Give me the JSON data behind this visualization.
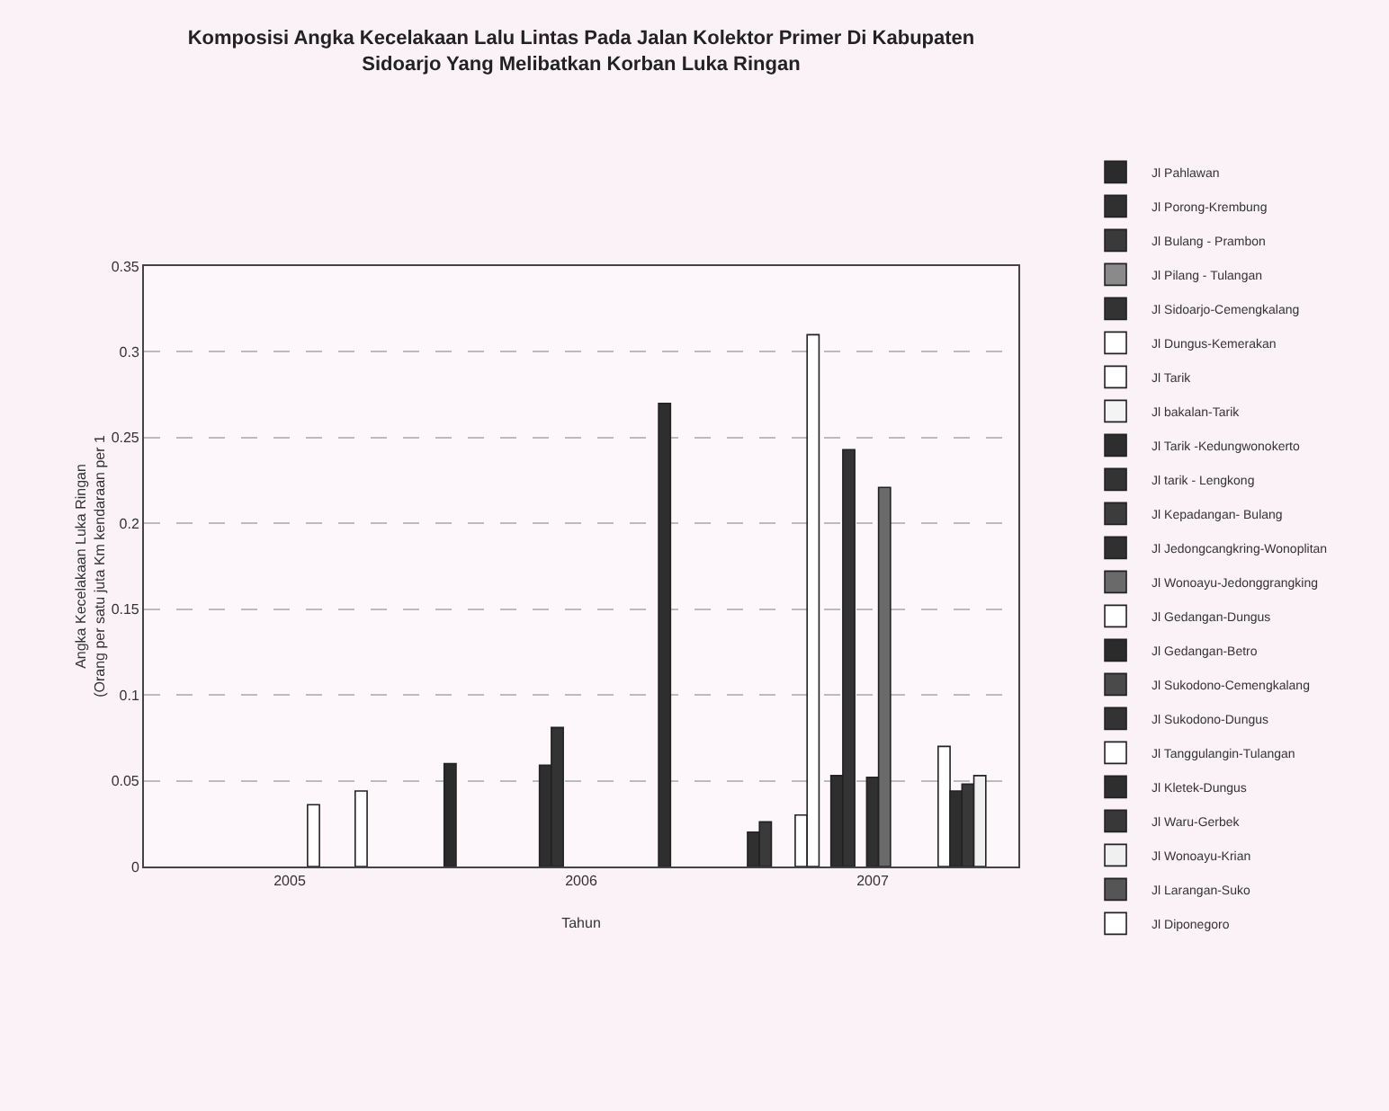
{
  "chart_data": {
    "type": "bar",
    "title": "Komposisi Angka Kecelakaan Lalu Lintas Pada Jalan Kolektor Primer Di Kabupaten\nSidoarjo Yang Melibatkan Korban Luka Ringan",
    "xlabel": "Tahun",
    "ylabel": "Angka Kecelakaan Luka Ringan\n(Orang per satu juta Km kendaraan per 1",
    "categories": [
      "2005",
      "2006",
      "2007"
    ],
    "ylim": [
      0,
      0.35
    ],
    "yticks": [
      0,
      0.05,
      0.1,
      0.15,
      0.2,
      0.25,
      0.3,
      0.35
    ],
    "grid": "y",
    "legend": "right",
    "series": [
      {
        "name": "Jl Pahlawan",
        "color": "#2b2b2b",
        "values": [
          null,
          0.06,
          null
        ]
      },
      {
        "name": "Jl Porong-Krembung",
        "color": "#303030",
        "values": [
          null,
          null,
          0.02
        ]
      },
      {
        "name": "Jl Bulang - Prambon",
        "color": "#3a3a3a",
        "values": [
          null,
          null,
          0.026
        ]
      },
      {
        "name": "Jl Pilang - Tulangan",
        "color": "#8a8a8a",
        "values": [
          null,
          null,
          null
        ]
      },
      {
        "name": "Jl Sidoarjo-Cemengkalang",
        "color": "#333333",
        "values": [
          null,
          null,
          null
        ]
      },
      {
        "name": "Jl Dungus-Kemerakan",
        "color": "#ffffff",
        "values": [
          null,
          null,
          0.03
        ]
      },
      {
        "name": "Jl Tarik",
        "color": "#ffffff",
        "values": [
          null,
          null,
          0.31
        ]
      },
      {
        "name": "Jl bakalan-Tarik",
        "color": "#f4f4f4",
        "values": [
          null,
          null,
          null
        ]
      },
      {
        "name": "Jl Tarik -Kedungwonokerto",
        "color": "#2e2e2e",
        "values": [
          null,
          0.059,
          0.053
        ]
      },
      {
        "name": "Jl tarik - Lengkong",
        "color": "#333333",
        "values": [
          null,
          0.081,
          0.243
        ]
      },
      {
        "name": "Jl Kepadangan- Bulang",
        "color": "#3c3c3c",
        "values": [
          null,
          null,
          null
        ]
      },
      {
        "name": "Jl Jedongcangkring-Wonoplitan",
        "color": "#303030",
        "values": [
          null,
          null,
          0.052
        ]
      },
      {
        "name": "Jl Wonoayu-Jedonggrangking",
        "color": "#6a6a6a",
        "values": [
          null,
          null,
          0.221
        ]
      },
      {
        "name": "Jl Gedangan-Dungus",
        "color": "#ffffff",
        "values": [
          0.036,
          null,
          null
        ]
      },
      {
        "name": "Jl Gedangan-Betro",
        "color": "#2b2b2b",
        "values": [
          null,
          null,
          null
        ]
      },
      {
        "name": "Jl Sukodono-Cemengkalang",
        "color": "#4a4a4a",
        "values": [
          null,
          null,
          null
        ]
      },
      {
        "name": "Jl Sukodono-Dungus",
        "color": "#333333",
        "values": [
          null,
          null,
          null
        ]
      },
      {
        "name": "Jl Tanggulangin-Tulangan",
        "color": "#ffffff",
        "values": [
          0.044,
          null,
          0.07
        ]
      },
      {
        "name": "Jl Kletek-Dungus",
        "color": "#2e2e2e",
        "values": [
          null,
          0.27,
          0.044
        ]
      },
      {
        "name": "Jl Waru-Gerbek",
        "color": "#383838",
        "values": [
          null,
          null,
          0.048
        ]
      },
      {
        "name": "Jl Wonoayu-Krian",
        "color": "#f0f0f0",
        "values": [
          null,
          null,
          0.053
        ]
      },
      {
        "name": "Jl Larangan-Suko",
        "color": "#555555",
        "values": [
          null,
          null,
          null
        ]
      },
      {
        "name": "Jl Diponegoro",
        "color": "#ffffff",
        "values": [
          null,
          null,
          null
        ]
      }
    ]
  }
}
